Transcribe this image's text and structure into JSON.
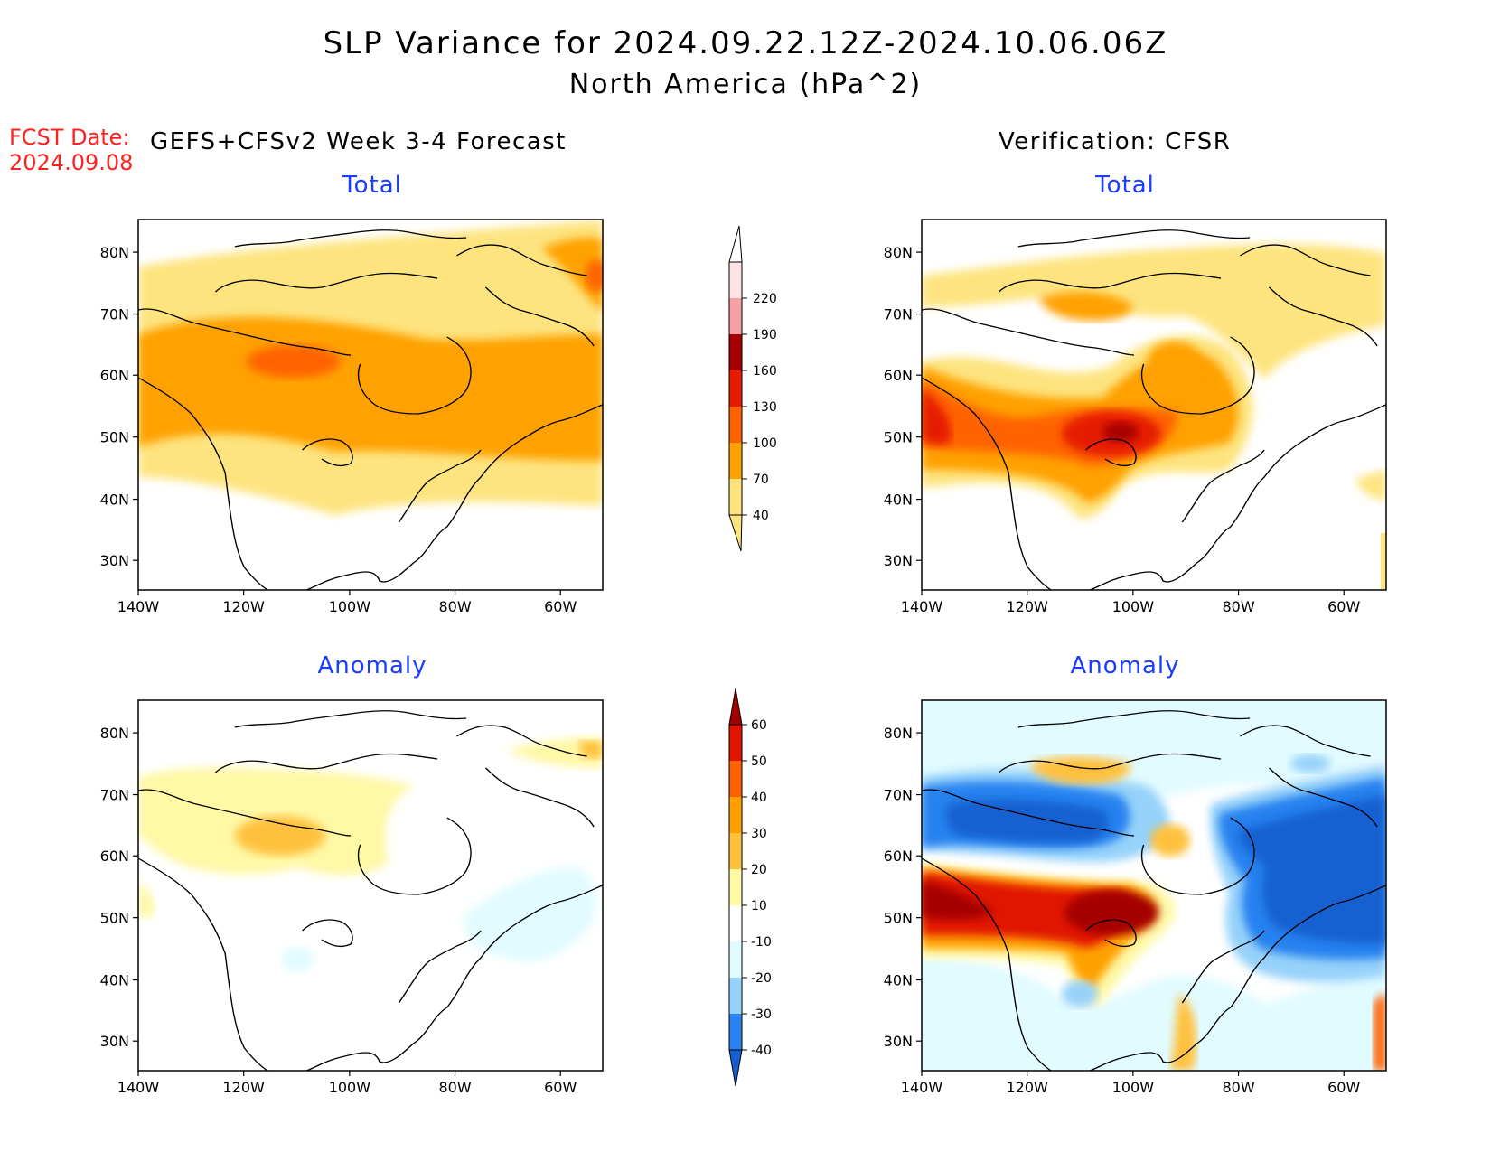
{
  "title": "SLP Variance for 2024.09.22.12Z-2024.10.06.06Z",
  "subtitle": "North America (hPa^2)",
  "fcst_label": "FCST Date:",
  "fcst_date": "2024.09.08",
  "left_header": "GEFS+CFSv2 Week 3-4 Forecast",
  "right_header": "Verification: CFSR",
  "panel_titles": {
    "top_left": "Total",
    "top_right": "Total",
    "bottom_left": "Anomaly",
    "bottom_right": "Anomaly"
  },
  "axes": {
    "lat_labels": [
      "80N",
      "70N",
      "60N",
      "50N",
      "40N",
      "30N"
    ],
    "lon_labels": [
      "140W",
      "120W",
      "100W",
      "80W",
      "60W"
    ]
  },
  "total_colorbar": {
    "labels": [
      "40",
      "70",
      "100",
      "130",
      "160",
      "190",
      "220"
    ],
    "colors": [
      "#fde47f",
      "#ffa100",
      "#ff6300",
      "#e61b00",
      "#a60000",
      "#f3a1a4",
      "#fde3e5",
      "#ffffff"
    ]
  },
  "anomaly_colorbar": {
    "labels": [
      "-40",
      "-30",
      "-20",
      "-10",
      "10",
      "20",
      "30",
      "40",
      "50",
      "60"
    ],
    "colors": [
      "#1460d2",
      "#2882f0",
      "#96d2fa",
      "#e1fbff",
      "#ffffff",
      "#fff8a5",
      "#ffc13c",
      "#ffa000",
      "#ff6000",
      "#e11400",
      "#a50000"
    ]
  },
  "colors": {
    "title_red": "#ff2020",
    "subtitle_blue": "#1a3cff"
  }
}
